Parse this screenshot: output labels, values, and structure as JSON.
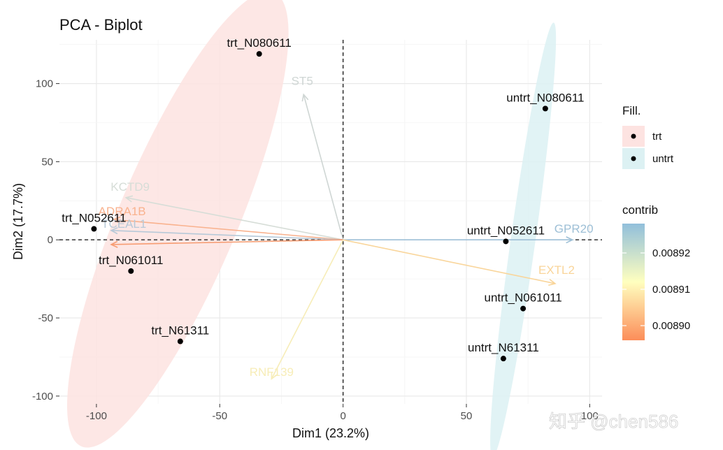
{
  "chart_data": {
    "type": "scatter",
    "title": "PCA - Biplot",
    "xlabel": "Dim1 (23.2%)",
    "ylabel": "Dim2 (17.7%)",
    "xlim": [
      -115,
      105
    ],
    "ylim": [
      -105,
      128
    ],
    "xticks": [
      -100,
      -50,
      0,
      50,
      100
    ],
    "yticks": [
      -100,
      -50,
      0,
      50,
      100
    ],
    "grid": true,
    "legend_position": "right",
    "points": [
      {
        "label": "trt_N080611",
        "group": "trt",
        "x": -34,
        "y": 119
      },
      {
        "label": "trt_N052611",
        "group": "trt",
        "x": -101,
        "y": 7
      },
      {
        "label": "trt_N061011",
        "group": "trt",
        "x": -86,
        "y": -20
      },
      {
        "label": "trt_N61311",
        "group": "trt",
        "x": -66,
        "y": -65
      },
      {
        "label": "untrt_N080611",
        "group": "untrt",
        "x": 82,
        "y": 84
      },
      {
        "label": "untrt_N052611",
        "group": "untrt",
        "x": 66,
        "y": -1
      },
      {
        "label": "untrt_N061011",
        "group": "untrt",
        "x": 73,
        "y": -44
      },
      {
        "label": "untrt_N61311",
        "group": "untrt",
        "x": 65,
        "y": -76
      }
    ],
    "ellipses": [
      {
        "group": "trt",
        "cx": -67,
        "cy": 13,
        "rx": 100,
        "ry": 24,
        "angle": 67,
        "color": "#fde3e1"
      },
      {
        "group": "untrt",
        "cx": 73,
        "cy": 0,
        "rx": 89,
        "ry": 5,
        "angle": 82,
        "color": "#dcf1f3"
      }
    ],
    "variables": [
      {
        "name": "ST5",
        "x": -16,
        "y": 93,
        "color": "#cfd6d4"
      },
      {
        "name": "KCTD9",
        "x": -88,
        "y": 27,
        "color": "#d6ddd7"
      },
      {
        "name": "ADRA1B",
        "x": -93,
        "y": 13,
        "color": "#f9b28e"
      },
      {
        "name": "TCEAL1",
        "x": -94,
        "y": 6,
        "color": "#b7c9d8"
      },
      {
        "name": "",
        "x": -94,
        "y": -3,
        "color": "#f79c72"
      },
      {
        "name": "GPR20",
        "x": 93,
        "y": 0,
        "color": "#9dbfd6"
      },
      {
        "name": "EXTL2",
        "x": 86,
        "y": -28,
        "color": "#f9d59a"
      },
      {
        "name": "RNF139",
        "x": -29,
        "y": -89,
        "color": "#f7edb8"
      }
    ],
    "legend_fill": {
      "title": "Fill.",
      "items": [
        {
          "name": "trt",
          "color": "#fde3e1"
        },
        {
          "name": "untrt",
          "color": "#dcf1f3"
        }
      ]
    },
    "legend_contrib": {
      "title": "contrib",
      "ticks": [
        "0.00892",
        "0.00891",
        "0.00890"
      ],
      "colors": [
        "#91bfdb",
        "#ffffbf",
        "#fc8d59"
      ]
    }
  },
  "watermark": "知乎 @chen586"
}
